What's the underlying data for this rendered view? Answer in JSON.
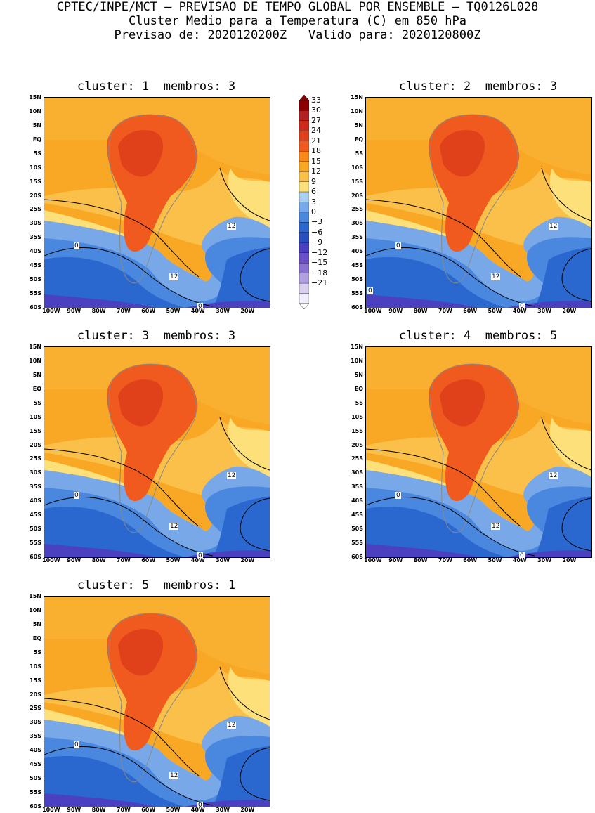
{
  "header": {
    "line1": "CPTEC/INPE/MCT — PREVISAO DE TEMPO GLOBAL POR ENSEMBLE — TQ0126L028",
    "line2": "Cluster Medio para a Temperatura (C) em 850 hPa",
    "line3": "Previsao de: 2020120200Z   Valido para: 2020120800Z"
  },
  "panels": [
    {
      "title": "cluster: 1  membros: 3",
      "labels": [
        "12",
        "12",
        "0",
        "0"
      ]
    },
    {
      "title": "cluster: 2  membros: 3",
      "labels": [
        "12",
        "12",
        "0",
        "0",
        "0"
      ]
    },
    {
      "title": "cluster: 3  membros: 3",
      "labels": [
        "12",
        "12",
        "0",
        "0"
      ]
    },
    {
      "title": "cluster: 4  membros: 5",
      "labels": [
        "12",
        "12",
        "0",
        "0"
      ]
    },
    {
      "title": "cluster: 5  membros: 1",
      "labels": [
        "12",
        "12",
        "0",
        "0"
      ]
    }
  ],
  "lat_ticks": [
    "15N",
    "10N",
    "5N",
    "EQ",
    "5S",
    "10S",
    "15S",
    "20S",
    "25S",
    "30S",
    "35S",
    "40S",
    "45S",
    "50S",
    "55S",
    "60S"
  ],
  "lon_ticks": [
    "100W",
    "90W",
    "80W",
    "70W",
    "60W",
    "50W",
    "40W",
    "30W",
    "20W"
  ],
  "colorbar": {
    "labels": [
      "33",
      "30",
      "27",
      "24",
      "21",
      "18",
      "15",
      "12",
      "9",
      "6",
      "3",
      "0",
      "−3",
      "−6",
      "−9",
      "−12",
      "−15",
      "−18",
      "−21"
    ],
    "colors": [
      "#8b0000",
      "#b22222",
      "#cc2a1a",
      "#e0401a",
      "#f05a1e",
      "#f88a1a",
      "#f9a825",
      "#fbc04a",
      "#fde07a",
      "#a8d0f0",
      "#78a8e8",
      "#4a88e0",
      "#2a68d0",
      "#2a50c0",
      "#4a40c0",
      "#6a50c8",
      "#8a70d0",
      "#b0a0e0",
      "#d8d0f0",
      "#f0eefa"
    ]
  }
}
